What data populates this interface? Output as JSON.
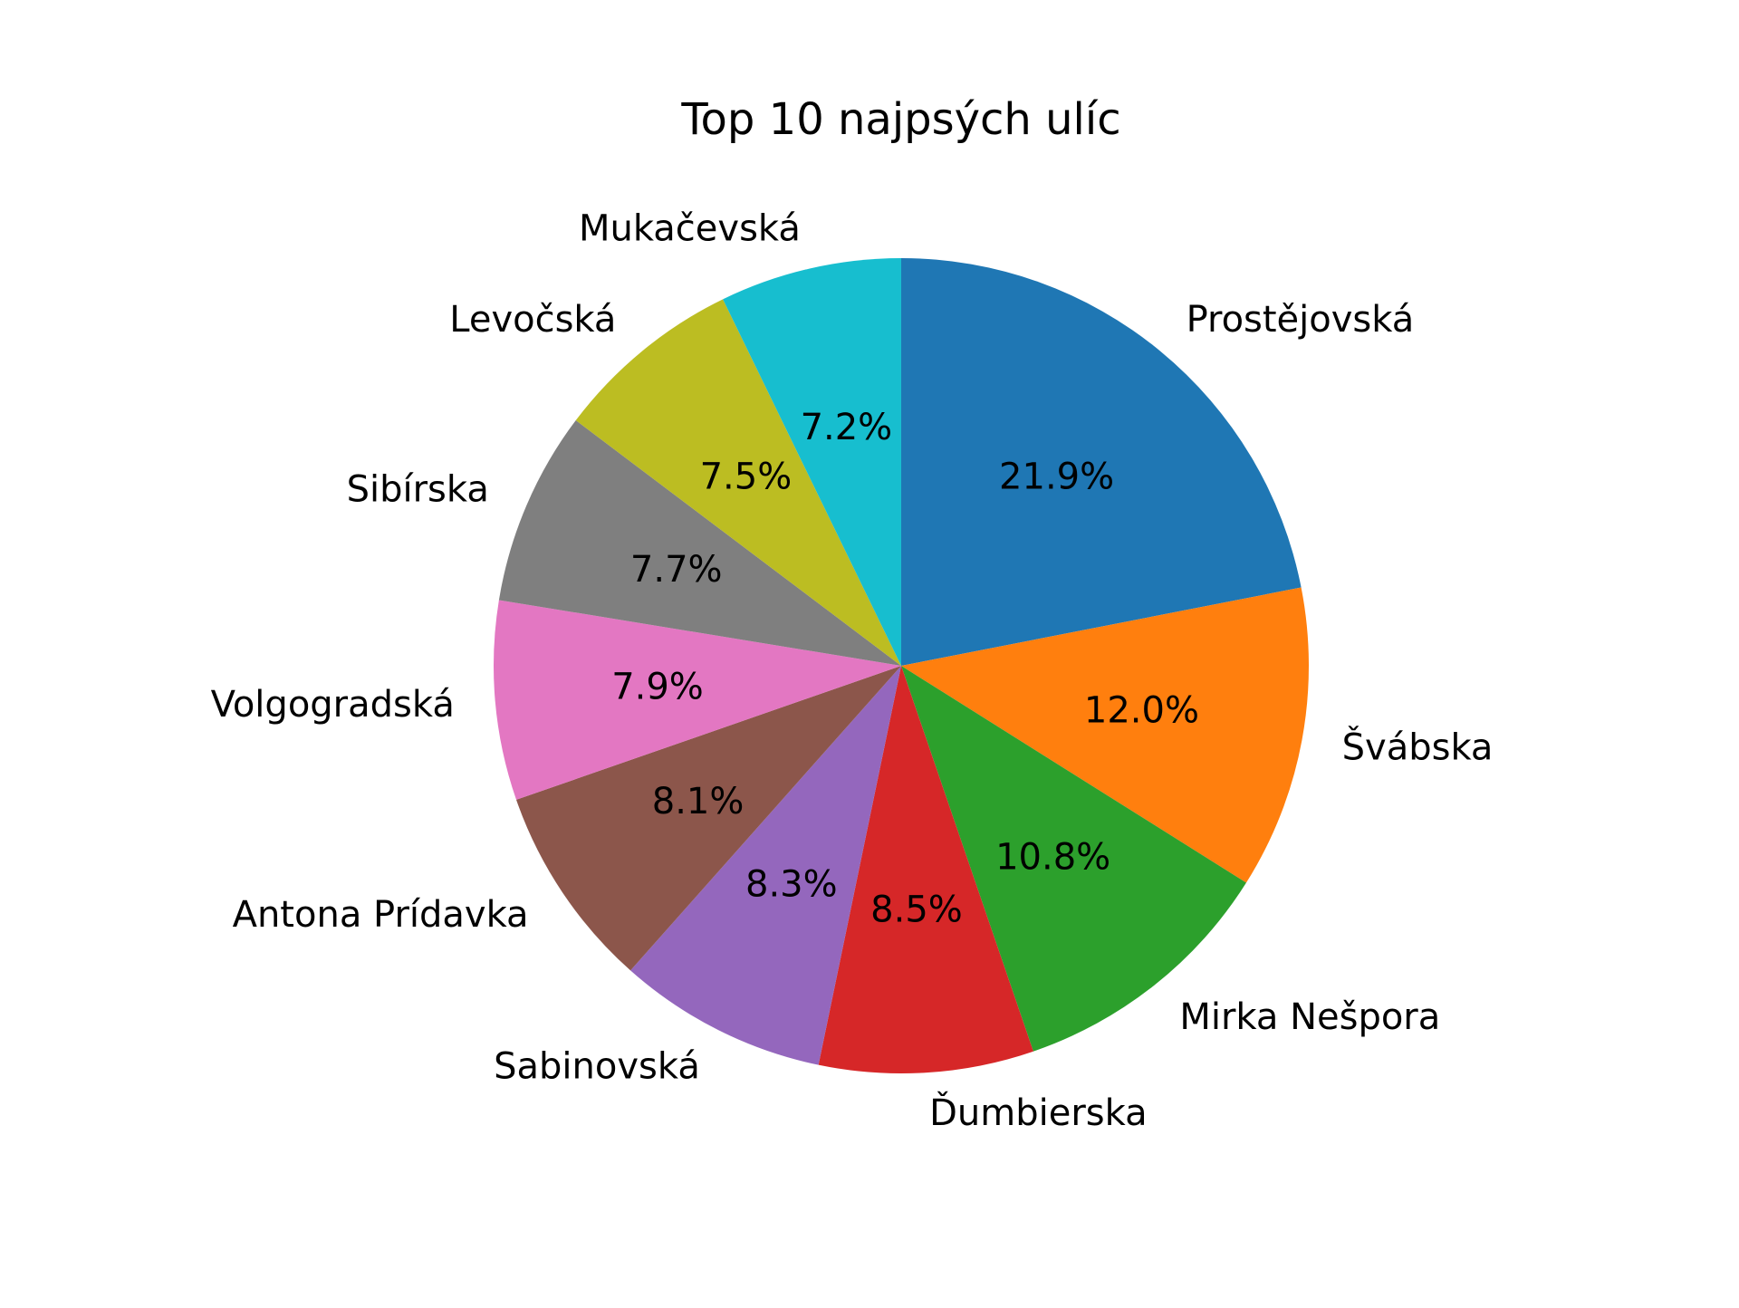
{
  "chart_data": {
    "type": "pie",
    "title": "Top 10 najpsých ulíc",
    "start_angle_deg": 90,
    "direction": "clockwise",
    "slices": [
      {
        "label": "Prostějovská",
        "value": 21.9,
        "pct_label": "21.9%",
        "color": "#1f77b4"
      },
      {
        "label": "Švábska",
        "value": 12.0,
        "pct_label": "12.0%",
        "color": "#ff7f0e"
      },
      {
        "label": "Mirka Nešpora",
        "value": 10.8,
        "pct_label": "10.8%",
        "color": "#2ca02c"
      },
      {
        "label": "Ďumbierska",
        "value": 8.5,
        "pct_label": "8.5%",
        "color": "#d62728"
      },
      {
        "label": "Sabinovská",
        "value": 8.3,
        "pct_label": "8.3%",
        "color": "#9467bd"
      },
      {
        "label": "Antona Prídavka",
        "value": 8.1,
        "pct_label": "8.1%",
        "color": "#8c564b"
      },
      {
        "label": "Volgogradská",
        "value": 7.9,
        "pct_label": "7.9%",
        "color": "#e377c2"
      },
      {
        "label": "Sibírska",
        "value": 7.7,
        "pct_label": "7.7%",
        "color": "#7f7f7f"
      },
      {
        "label": "Levočská",
        "value": 7.5,
        "pct_label": "7.5%",
        "color": "#bcbd22"
      },
      {
        "label": "Mukačevská",
        "value": 7.2,
        "pct_label": "7.2%",
        "color": "#17becf"
      }
    ]
  }
}
